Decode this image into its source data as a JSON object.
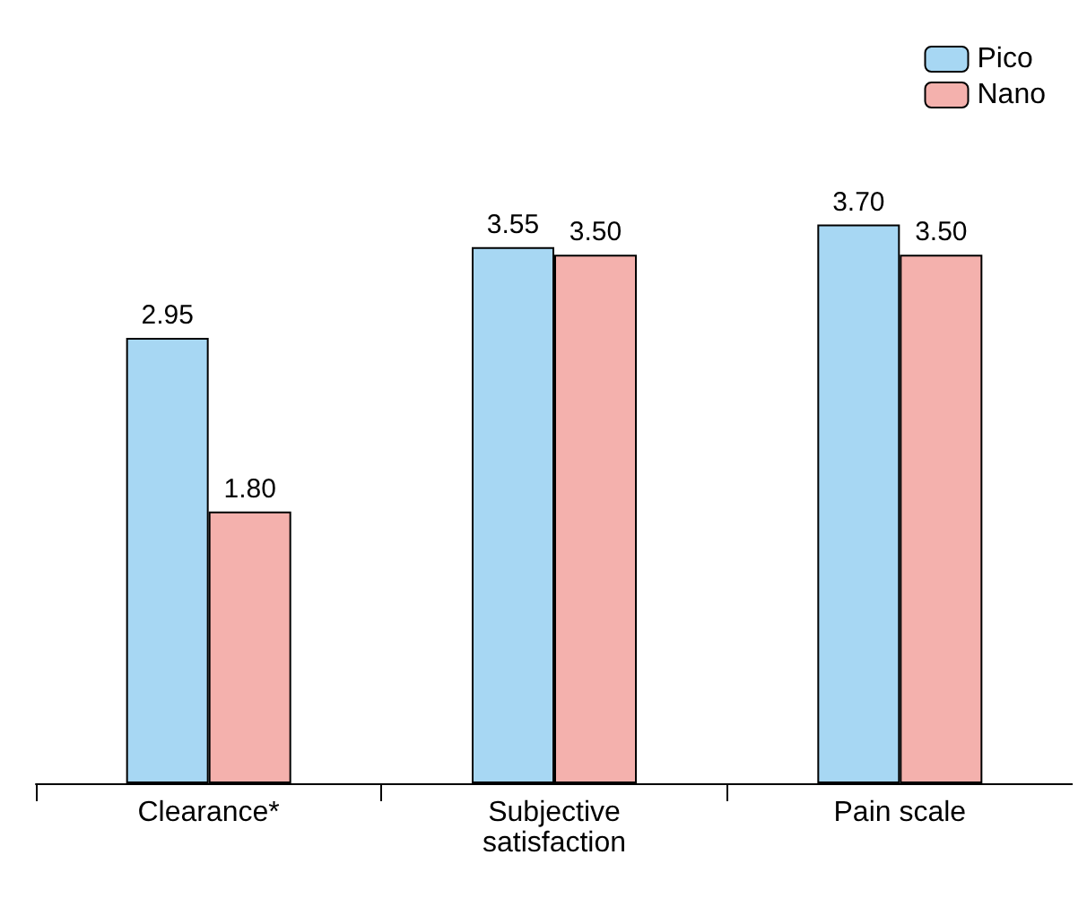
{
  "chart_data": {
    "type": "bar",
    "categories": [
      "Clearance*",
      "Subjective\nsatisfaction",
      "Pain scale"
    ],
    "series": [
      {
        "name": "Pico",
        "color": "#a7d7f3",
        "values": [
          2.95,
          3.55,
          3.7
        ],
        "value_labels": [
          "2.95",
          "3.55",
          "3.70"
        ]
      },
      {
        "name": "Nano",
        "color": "#f4b1ad",
        "values": [
          1.8,
          3.5,
          3.5
        ],
        "value_labels": [
          "1.80",
          "3.50",
          "3.50"
        ]
      }
    ],
    "legend": "top right"
  }
}
